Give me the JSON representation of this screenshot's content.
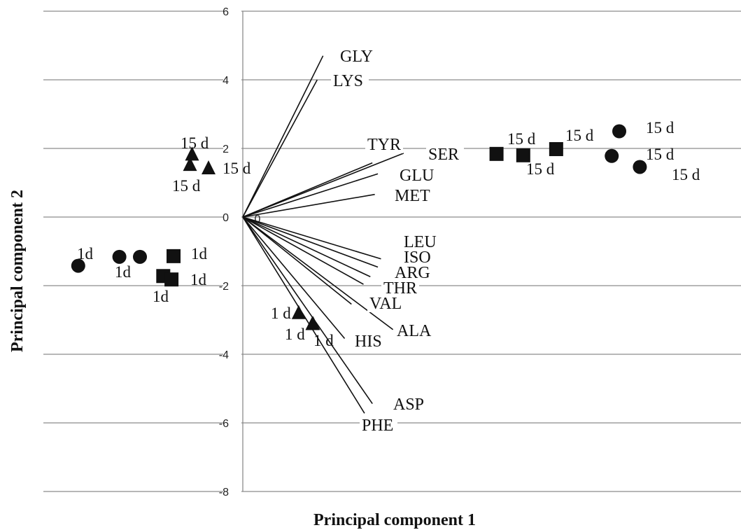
{
  "chart_data": {
    "type": "scatter",
    "title": "",
    "xlabel": "Principal component 1",
    "ylabel": "Principal component 2",
    "ylim": [
      -8,
      6
    ],
    "yticks": [
      6,
      4,
      2,
      0,
      -2,
      -4,
      -6,
      -8
    ],
    "grid": "horizontal",
    "origin_label": "0",
    "vectors": [
      {
        "label": "GLY",
        "x": 2.34,
        "y": 4.7
      },
      {
        "label": "LYS",
        "x": 2.17,
        "y": 4.0
      },
      {
        "label": "TYR",
        "x": 3.78,
        "y": 1.58
      },
      {
        "label": "SER",
        "x": 4.69,
        "y": 1.86
      },
      {
        "label": "GLU",
        "x": 3.94,
        "y": 1.26
      },
      {
        "label": "MET",
        "x": 3.85,
        "y": 0.66
      },
      {
        "label": "LEU",
        "x": 4.03,
        "y": -1.22
      },
      {
        "label": "ISO",
        "x": 3.94,
        "y": -1.46
      },
      {
        "label": "ARG",
        "x": 3.72,
        "y": -1.74
      },
      {
        "label": "THR",
        "x": 3.52,
        "y": -1.96
      },
      {
        "label": "VAL",
        "x": 3.17,
        "y": -2.54
      },
      {
        "label": "ALA",
        "x": 4.38,
        "y": -3.28
      },
      {
        "label": "HIS",
        "x": 2.97,
        "y": -3.54
      },
      {
        "label": "ASP",
        "x": 3.78,
        "y": -5.44
      },
      {
        "label": "PHE",
        "x": 3.55,
        "y": -5.72
      }
    ],
    "series": [
      {
        "marker": "triangle",
        "points": [
          {
            "x": -1.48,
            "y": 1.82,
            "label": "15 d"
          },
          {
            "x": -1.54,
            "y": 1.52,
            "label": "15 d"
          },
          {
            "x": -1.0,
            "y": 1.42,
            "label": "15 d"
          },
          {
            "x": 1.63,
            "y": -2.8,
            "label": "1 d"
          },
          {
            "x": 2.03,
            "y": -3.12,
            "label": "1 d"
          },
          {
            "x": 2.05,
            "y": -3.12,
            "label": "1 d"
          }
        ]
      },
      {
        "marker": "circle",
        "points": [
          {
            "x": -4.8,
            "y": -1.42,
            "label": "1d"
          },
          {
            "x": -3.6,
            "y": -1.16,
            "label": "1d"
          },
          {
            "x": -3.0,
            "y": -1.16,
            "label": ""
          },
          {
            "x": 10.98,
            "y": 2.5,
            "label": "15 d"
          },
          {
            "x": 10.76,
            "y": 1.78,
            "label": "15 d"
          },
          {
            "x": 11.58,
            "y": 1.46,
            "label": "15 d"
          }
        ]
      },
      {
        "marker": "square",
        "points": [
          {
            "x": -2.02,
            "y": -1.14,
            "label": "1d"
          },
          {
            "x": -2.32,
            "y": -1.72,
            "label": "1d"
          },
          {
            "x": -2.08,
            "y": -1.82,
            "label": "1d"
          },
          {
            "x": 7.4,
            "y": 1.84,
            "label": "15 d"
          },
          {
            "x": 8.18,
            "y": 1.8,
            "label": "15 d"
          },
          {
            "x": 9.14,
            "y": 1.98,
            "label": "15 d"
          }
        ]
      }
    ]
  }
}
